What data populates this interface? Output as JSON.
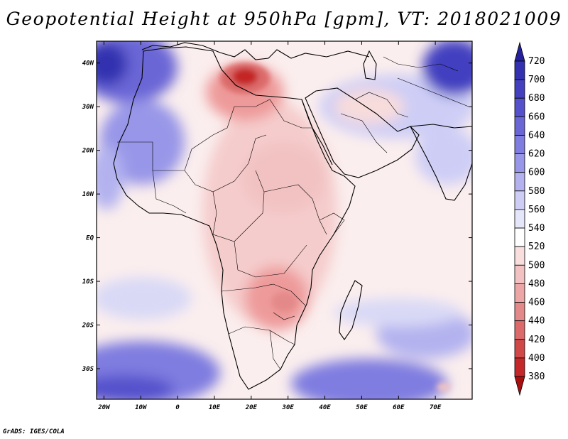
{
  "title": "Geopotential Height at 950hPa [gpm], VT: 2018021009",
  "footer": "GrADS: IGES/COLA",
  "lat_labels": [
    "40N",
    "30N",
    "20N",
    "10N",
    "EQ",
    "10S",
    "20S",
    "30S"
  ],
  "lat_values": [
    40,
    30,
    20,
    10,
    0,
    -10,
    -20,
    -30
  ],
  "lon_labels": [
    "20W",
    "10W",
    "0",
    "10E",
    "20E",
    "30E",
    "40E",
    "50E",
    "60E",
    "70E"
  ],
  "lon_values": [
    -20,
    -10,
    0,
    10,
    20,
    30,
    40,
    50,
    60,
    70
  ],
  "map_extent": {
    "lon_min": -22,
    "lon_max": 80,
    "lat_min": -37,
    "lat_max": 45
  },
  "colorbar": {
    "labels": [
      "720",
      "700",
      "680",
      "660",
      "640",
      "620",
      "600",
      "580",
      "560",
      "540",
      "520",
      "500",
      "480",
      "460",
      "440",
      "420",
      "400",
      "380"
    ],
    "colors": [
      "#25219a",
      "#3331b0",
      "#4341c0",
      "#5551cc",
      "#6a66d6",
      "#7f7de0",
      "#9896e8",
      "#b3b2ef",
      "#cdcdf6",
      "#e6e6fa",
      "#ffffff",
      "#f9dede",
      "#f2c2c2",
      "#eca6a6",
      "#e48989",
      "#dc6a6a",
      "#d14848",
      "#c42828",
      "#a80f0f"
    ]
  },
  "colors": {
    "background": "#ffffff",
    "neutral_field": "#fdf1f1",
    "warm_light": "#f5cccc",
    "warm_mid": "#ee9a9a",
    "warm_high": "#d83838",
    "cool_light": "#d9d9f6",
    "cool_mid": "#a9a7ec",
    "cool_high": "#5a56cf"
  }
}
